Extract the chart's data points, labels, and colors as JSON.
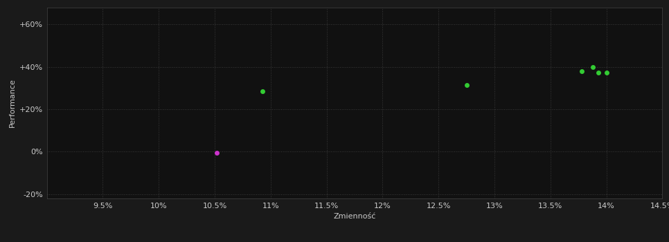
{
  "background_color": "#1a1a1a",
  "plot_bg_color": "#111111",
  "grid_color": "#3a3a3a",
  "text_color": "#cccccc",
  "xlabel": "Zmienność",
  "ylabel": "Performance",
  "xlim": [
    0.09,
    0.145
  ],
  "ylim": [
    -0.22,
    0.68
  ],
  "xticks": [
    0.095,
    0.1,
    0.105,
    0.11,
    0.115,
    0.12,
    0.125,
    0.13,
    0.135,
    0.14,
    0.145
  ],
  "yticks": [
    -0.2,
    0.0,
    0.2,
    0.4,
    0.6
  ],
  "ytick_labels": [
    "-20%",
    "0%",
    "+20%",
    "+40%",
    "+60%"
  ],
  "xtick_labels": [
    "9.5%",
    "10%",
    "10.5%",
    "11%",
    "11.5%",
    "12%",
    "12.5%",
    "13%",
    "13.5%",
    "14%",
    "14.5%"
  ],
  "green_points": [
    [
      0.1093,
      0.285
    ],
    [
      0.1275,
      0.315
    ],
    [
      0.1378,
      0.378
    ],
    [
      0.1388,
      0.398
    ],
    [
      0.1393,
      0.373
    ],
    [
      0.14,
      0.371
    ]
  ],
  "magenta_points": [
    [
      0.1052,
      -0.005
    ]
  ],
  "green_color": "#33cc33",
  "magenta_color": "#cc33cc",
  "point_size": 25,
  "axis_fontsize": 8,
  "tick_fontsize": 8
}
